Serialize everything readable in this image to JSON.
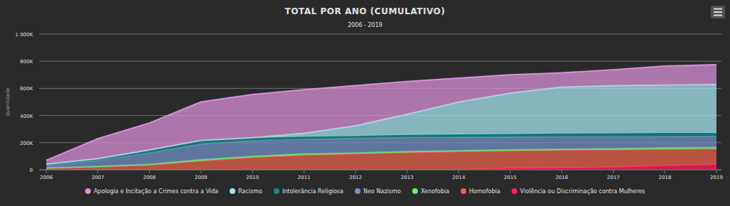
{
  "chart_data": {
    "type": "area",
    "title": "TOTAL POR ANO (CUMULATIVO)",
    "subtitle": "2006 - 2019",
    "y_label": "quantidade",
    "stacked": true,
    "grid": true,
    "legend": "bottom",
    "categories": [
      "2006",
      "2007",
      "2008",
      "2009",
      "2010",
      "2011",
      "2012",
      "2013",
      "2014",
      "2015",
      "2016",
      "2017",
      "2018",
      "2019"
    ],
    "ylim": [
      0,
      1000000
    ],
    "yticks": [
      0,
      {
        "value": 200000,
        "label": "200K"
      },
      {
        "value": 400000,
        "label": "400K"
      },
      {
        "value": 600000,
        "label": "600K"
      },
      {
        "value": 800000,
        "label": "800K"
      },
      {
        "value": 1000000,
        "label": "1 000K"
      }
    ],
    "series": [
      {
        "name": "Apologia e Incitação a Crimes contra a Vida",
        "color": "#d890d8",
        "values": [
          28000,
          148000,
          198000,
          283000,
          318000,
          320000,
          295000,
          240000,
          175000,
          135000,
          105000,
          117000,
          140000,
          145000
        ]
      },
      {
        "name": "Racismo",
        "color": "#a6e4ee",
        "values": [
          2000,
          2000,
          2000,
          2000,
          2000,
          25000,
          75000,
          152000,
          238000,
          300000,
          342000,
          350000,
          353000,
          358000
        ]
      },
      {
        "name": "Intolerância Religiosa",
        "color": "#1a8a80",
        "values": [
          10000,
          10000,
          20000,
          25000,
          20000,
          20000,
          18000,
          20000,
          22000,
          23000,
          25000,
          26000,
          27000,
          26000
        ]
      },
      {
        "name": "Neo Nazismo",
        "color": "#7090c4",
        "values": [
          15000,
          45000,
          85000,
          115000,
          115000,
          107000,
          107000,
          103000,
          98000,
          94000,
          91000,
          88000,
          83000,
          81000
        ]
      },
      {
        "name": "Xenofobia",
        "color": "#66ee66",
        "values": [
          3000,
          3000,
          5000,
          10000,
          8000,
          10000,
          7000,
          7000,
          7000,
          8000,
          7000,
          8000,
          10000,
          10000
        ]
      },
      {
        "name": "Homofobia",
        "color": "#e8604c",
        "values": [
          12000,
          22000,
          35000,
          65000,
          92000,
          108000,
          118000,
          128000,
          135000,
          128000,
          130000,
          128000,
          120000,
          115000
        ]
      },
      {
        "name": "Violência ou Discriminação contra Mulheres",
        "color": "#ff1f5a",
        "values": [
          0,
          0,
          0,
          0,
          0,
          0,
          0,
          0,
          0,
          12000,
          15000,
          20000,
          32000,
          40000
        ]
      }
    ]
  }
}
